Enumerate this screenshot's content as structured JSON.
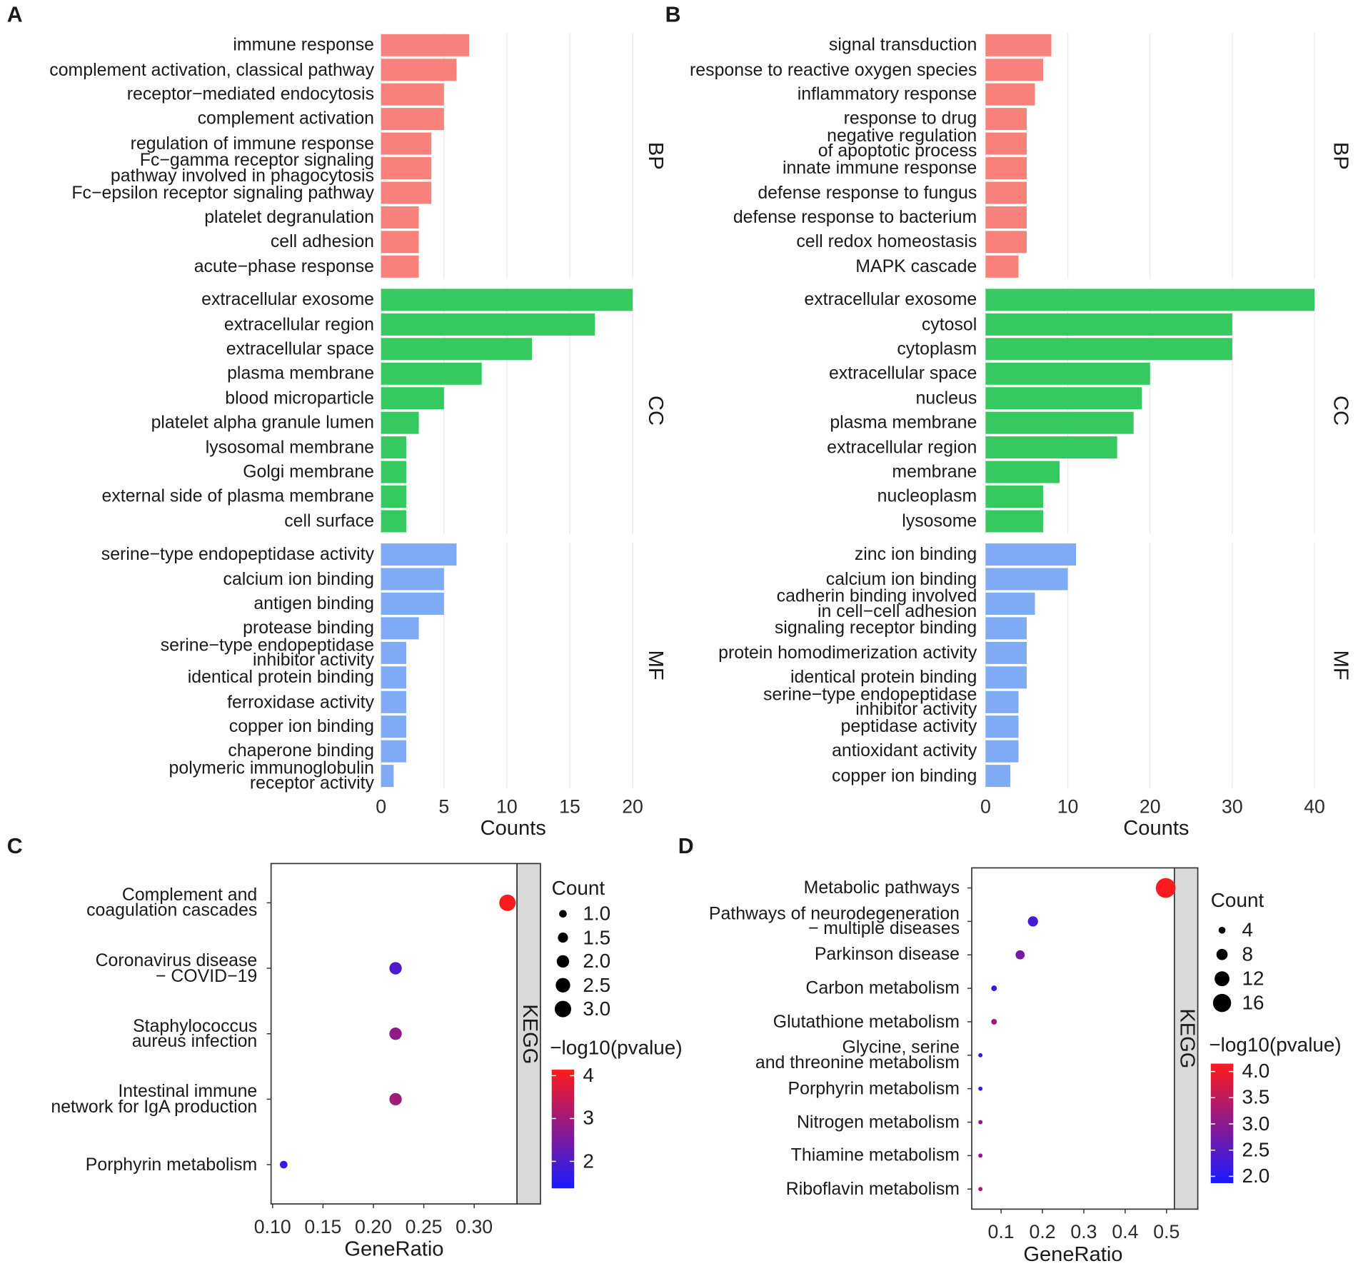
{
  "chart_data": [
    {
      "type": "bar",
      "panel": "A",
      "xlabel": "Counts",
      "xlim": [
        0,
        21
      ],
      "xticks": [
        0,
        5,
        10,
        15,
        20
      ],
      "grid": true,
      "facets": [
        {
          "name": "BP",
          "color": "#f8827b",
          "categories": [
            "immune response",
            "complement activation, classical pathway",
            "receptor−mediated endocytosis",
            "complement activation",
            "regulation of immune response",
            "Fc−gamma receptor signaling\npathway involved in phagocytosis",
            "Fc−epsilon receptor signaling pathway",
            "platelet degranulation",
            "cell adhesion",
            "acute−phase response"
          ],
          "values": [
            7,
            6,
            5,
            5,
            4,
            4,
            4,
            3,
            3,
            3
          ]
        },
        {
          "name": "CC",
          "color": "#35c960",
          "categories": [
            "extracellular exosome",
            "extracellular region",
            "extracellular space",
            "plasma membrane",
            "blood microparticle",
            "platelet alpha granule lumen",
            "lysosomal membrane",
            "Golgi membrane",
            "external side of plasma membrane",
            "cell surface"
          ],
          "values": [
            20,
            17,
            12,
            8,
            5,
            3,
            2,
            2,
            2,
            2
          ]
        },
        {
          "name": "MF",
          "color": "#7eaaf6",
          "categories": [
            "serine−type endopeptidase activity",
            "calcium ion binding",
            "antigen binding",
            "protease binding",
            "serine−type endopeptidase\ninhibitor activity",
            "identical protein binding",
            "ferroxidase activity",
            "copper ion binding",
            "chaperone binding",
            "polymeric immunoglobulin\nreceptor activity"
          ],
          "values": [
            6,
            5,
            5,
            3,
            2,
            2,
            2,
            2,
            2,
            1
          ]
        }
      ]
    },
    {
      "type": "bar",
      "panel": "B",
      "xlabel": "Counts",
      "xlim": [
        0,
        41.5
      ],
      "xticks": [
        0,
        10,
        20,
        30,
        40
      ],
      "grid": true,
      "facets": [
        {
          "name": "BP",
          "color": "#f8827b",
          "categories": [
            "signal transduction",
            "response to reactive oxygen species",
            "inflammatory response",
            "response to drug",
            "negative regulation\nof apoptotic process",
            "innate immune response",
            "defense response to fungus",
            "defense response to bacterium",
            "cell redox homeostasis",
            "MAPK cascade"
          ],
          "values": [
            8,
            7,
            6,
            5,
            5,
            5,
            5,
            5,
            5,
            4
          ]
        },
        {
          "name": "CC",
          "color": "#35c960",
          "categories": [
            "extracellular exosome",
            "cytosol",
            "cytoplasm",
            "extracellular space",
            "nucleus",
            "plasma membrane",
            "extracellular region",
            "membrane",
            "nucleoplasm",
            "lysosome"
          ],
          "values": [
            40,
            30,
            30,
            20,
            19,
            18,
            16,
            9,
            7,
            7
          ]
        },
        {
          "name": "MF",
          "color": "#7eaaf6",
          "categories": [
            "zinc ion binding",
            "calcium ion binding",
            "cadherin binding involved\nin cell−cell adhesion",
            "signaling receptor binding",
            "protein homodimerization activity",
            "identical protein binding",
            "serine−type endopeptidase\ninhibitor activity",
            "peptidase activity",
            "antioxidant activity",
            "copper ion binding"
          ],
          "values": [
            11,
            10,
            6,
            5,
            5,
            5,
            4,
            4,
            4,
            3
          ]
        }
      ]
    },
    {
      "type": "dot",
      "panel": "C",
      "xlabel": "GeneRatio",
      "facet": "KEGG",
      "xlim": [
        0.0985,
        0.3425
      ],
      "xticks": [
        {
          "value": 0.1,
          "label": "0.10"
        },
        0.15,
        {
          "value": 0.2,
          "label": "0.20"
        },
        0.25,
        {
          "value": 0.3,
          "label": "0.30"
        }
      ],
      "categories": [
        "Complement and\ncoagulation cascades",
        "Coronavirus disease\n− COVID−19",
        "Staphylococcus\naureus infection",
        "Intestinal immune\nnetwork for IgA production",
        "Porphyrin metabolism"
      ],
      "values": [
        0.333,
        0.222,
        0.222,
        0.222,
        0.111
      ],
      "counts": [
        3,
        2,
        2,
        2,
        1
      ],
      "pvalues": [
        4.1,
        2.0,
        2.8,
        3.0,
        1.7
      ],
      "size_legend": {
        "title": "Count",
        "values": [
          {
            "value": 1,
            "label": "1.0"
          },
          1.5,
          {
            "value": 2,
            "label": "2.0"
          },
          2.5,
          {
            "value": 3,
            "label": "3.0"
          }
        ]
      },
      "colorbar": {
        "title": "−log10(pvalue)",
        "lim": [
          1.37,
          4.14
        ],
        "ticks": [
          2,
          3,
          4
        ],
        "colors": [
          "#1a1aff",
          "#ff1a1a"
        ]
      }
    },
    {
      "type": "dot",
      "panel": "D",
      "xlabel": "GeneRatio",
      "facet": "KEGG",
      "xlim": [
        0.029,
        0.519
      ],
      "xticks": [
        0.1,
        0.2,
        0.3,
        0.4,
        0.5
      ],
      "categories": [
        "Metabolic pathways",
        "Pathways of neurodegeneration\n− multiple diseases",
        "Parkinson disease",
        "Carbon metabolism",
        "Glutathione metabolism",
        "Glycine, serine\nand threonine metabolism",
        "Porphyrin metabolism",
        "Nitrogen metabolism",
        "Thiamine metabolism",
        "Riboflavin metabolism"
      ],
      "values": [
        0.498,
        0.177,
        0.146,
        0.083,
        0.083,
        0.05,
        0.05,
        0.05,
        0.05,
        0.05
      ],
      "counts": [
        18,
        7,
        6,
        3,
        3,
        2,
        2,
        2,
        2,
        2
      ],
      "pvalues": [
        4.1,
        2.3,
        2.8,
        2.1,
        3.2,
        2.0,
        2.1,
        3.0,
        3.1,
        3.3
      ],
      "size_legend": {
        "title": "Count",
        "values": [
          4,
          8,
          12,
          16
        ]
      },
      "colorbar": {
        "title": "−log10(pvalue)",
        "lim": [
          1.87,
          4.15
        ],
        "ticks": [
          {
            "value": 2,
            "label": "2.0"
          },
          2.5,
          {
            "value": 3,
            "label": "3.0"
          },
          3.5,
          {
            "value": 4,
            "label": "4.0"
          }
        ],
        "colors": [
          "#1a1aff",
          "#ff1a1a"
        ]
      }
    }
  ]
}
